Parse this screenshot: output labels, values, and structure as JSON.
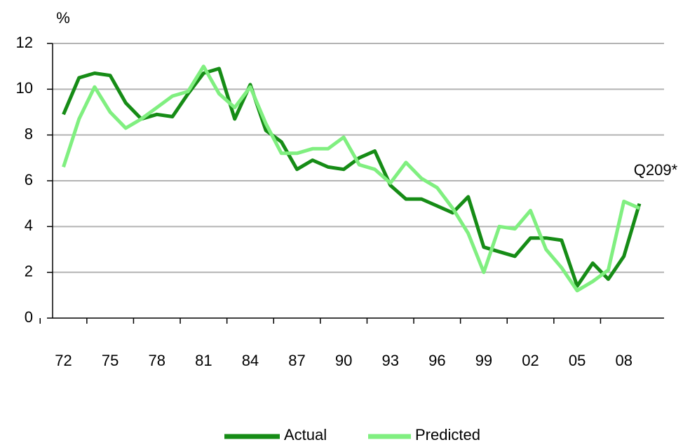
{
  "chart_data": {
    "type": "line",
    "y_label": "%",
    "annotation": "Q209*",
    "categories": [
      "72",
      null,
      null,
      "75",
      null,
      null,
      "78",
      null,
      null,
      "81",
      null,
      null,
      "84",
      null,
      null,
      "87",
      null,
      null,
      "90",
      null,
      null,
      "93",
      null,
      null,
      "96",
      null,
      null,
      "99",
      null,
      null,
      "02",
      null,
      null,
      "05",
      null,
      null,
      "08",
      null
    ],
    "series": [
      {
        "name": "Actual",
        "color": "#168c16",
        "values": [
          8.9,
          10.5,
          10.7,
          10.6,
          9.4,
          8.7,
          8.9,
          8.8,
          9.8,
          10.7,
          10.9,
          8.7,
          10.2,
          8.2,
          7.7,
          6.5,
          6.9,
          6.6,
          6.5,
          7.0,
          7.3,
          5.8,
          5.2,
          5.2,
          4.9,
          4.6,
          5.3,
          3.1,
          2.9,
          2.7,
          3.5,
          3.5,
          3.4,
          1.4,
          2.4,
          1.7,
          2.7,
          5.0
        ]
      },
      {
        "name": "Predicted",
        "color": "#80ef80",
        "values": [
          6.6,
          8.7,
          10.1,
          9.0,
          8.3,
          8.7,
          9.2,
          9.7,
          9.9,
          11.0,
          9.8,
          9.2,
          10.1,
          8.5,
          7.2,
          7.2,
          7.4,
          7.4,
          7.9,
          6.7,
          6.5,
          5.9,
          6.8,
          6.1,
          5.7,
          4.8,
          3.7,
          2.0,
          4.0,
          3.9,
          4.7,
          3.0,
          2.2,
          1.2,
          1.6,
          2.1,
          5.1,
          4.8
        ]
      }
    ],
    "ylim": [
      0,
      12
    ],
    "yticks": [
      0,
      2,
      4,
      6,
      8,
      10,
      12
    ],
    "grid": true,
    "legend": "bottom"
  }
}
